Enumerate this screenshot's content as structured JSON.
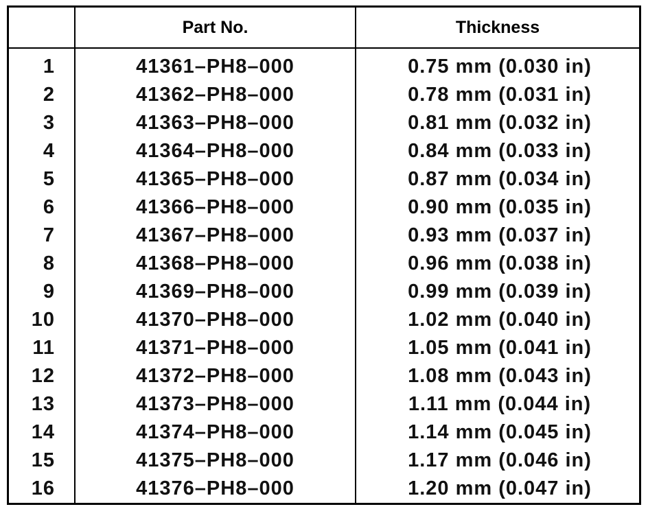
{
  "table": {
    "header": {
      "part_no": "Part No.",
      "thickness": "Thickness"
    },
    "rows": [
      [
        "1",
        "41361–PH8–000",
        "0.75 mm (0.030 in)"
      ],
      [
        "2",
        "41362–PH8–000",
        "0.78 mm (0.031 in)"
      ],
      [
        "3",
        "41363–PH8–000",
        "0.81 mm (0.032 in)"
      ],
      [
        "4",
        "41364–PH8–000",
        "0.84 mm (0.033 in)"
      ],
      [
        "5",
        "41365–PH8–000",
        "0.87 mm (0.034 in)"
      ],
      [
        "6",
        "41366–PH8–000",
        "0.90 mm (0.035 in)"
      ],
      [
        "7",
        "41367–PH8–000",
        "0.93 mm (0.037 in)"
      ],
      [
        "8",
        "41368–PH8–000",
        "0.96 mm (0.038 in)"
      ],
      [
        "9",
        "41369–PH8–000",
        "0.99 mm (0.039 in)"
      ],
      [
        "10",
        "41370–PH8–000",
        "1.02 mm (0.040 in)"
      ],
      [
        "11",
        "41371–PH8–000",
        "1.05 mm (0.041 in)"
      ],
      [
        "12",
        "41372–PH8–000",
        "1.08 mm (0.043 in)"
      ],
      [
        "13",
        "41373–PH8–000",
        "1.11 mm (0.044 in)"
      ],
      [
        "14",
        "41374–PH8–000",
        "1.14 mm (0.045 in)"
      ],
      [
        "15",
        "41375–PH8–000",
        "1.17 mm (0.046 in)"
      ],
      [
        "16",
        "41376–PH8–000",
        "1.20 mm (0.047 in)"
      ]
    ]
  }
}
